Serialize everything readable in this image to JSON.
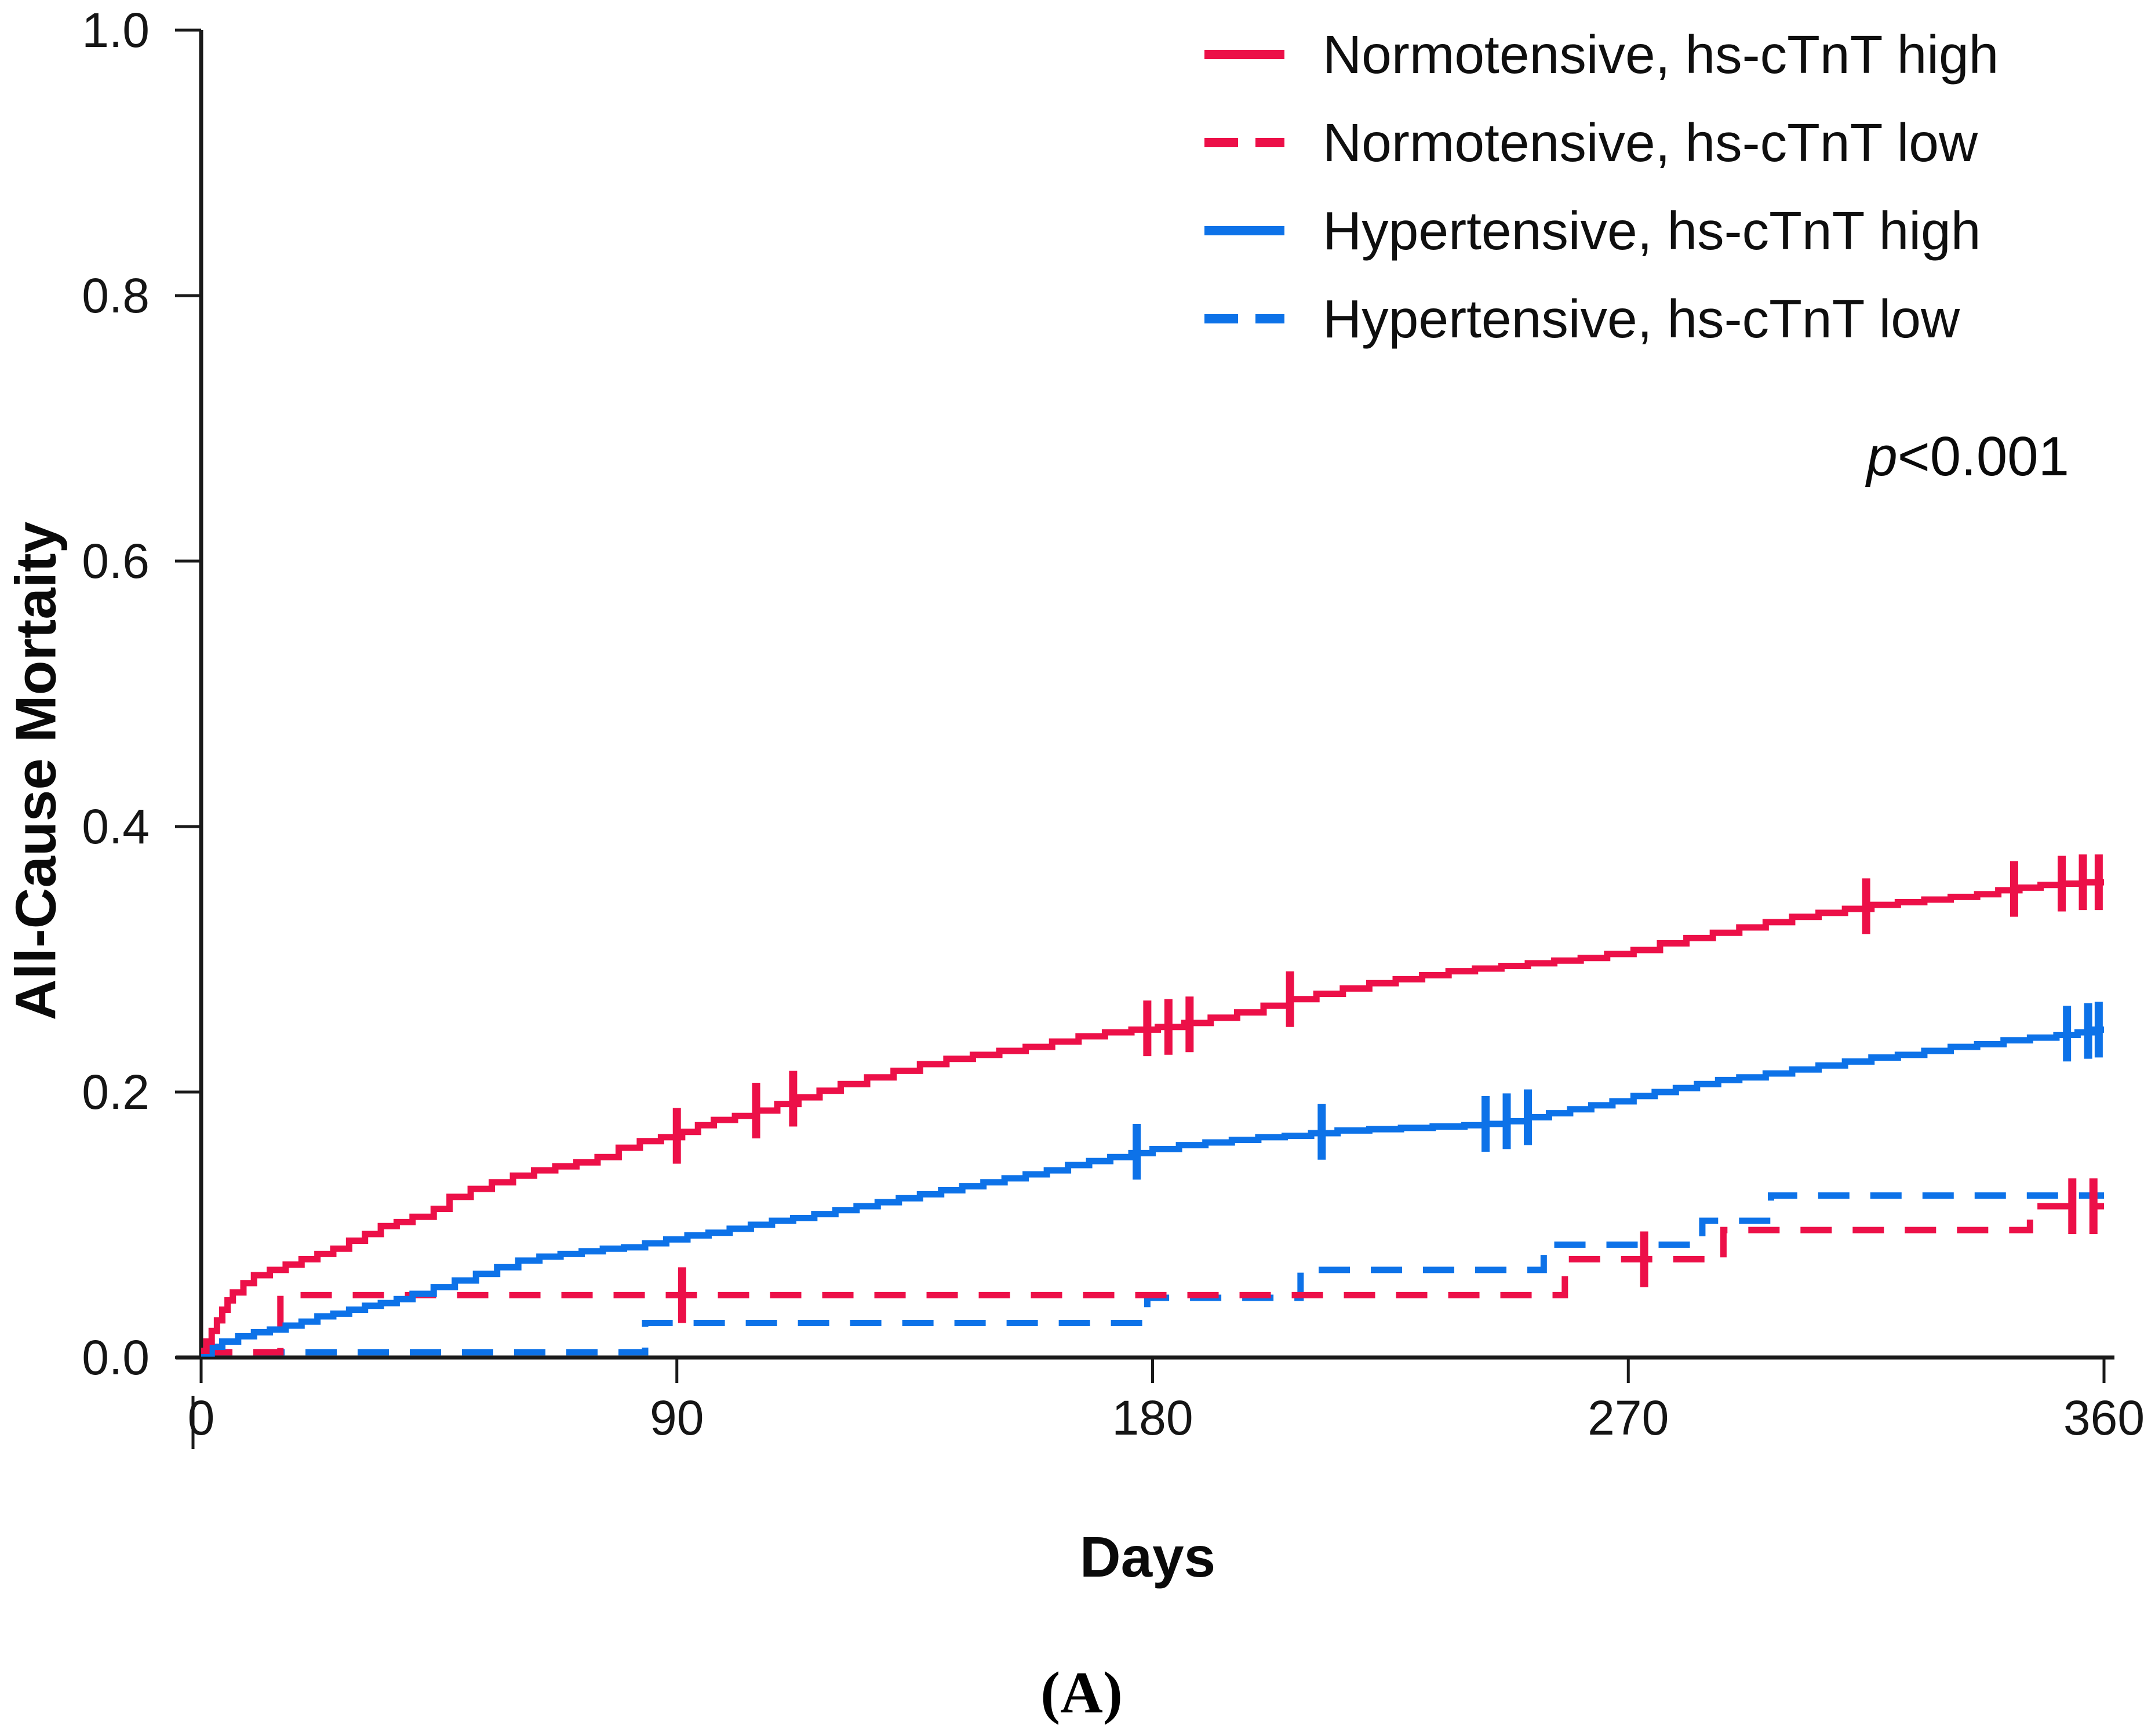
{
  "figure": {
    "panel_label": "(A)"
  },
  "annotations": {
    "p_italic": "p",
    "p_rest": "<0.001"
  },
  "chart_data": {
    "type": "line",
    "subtype": "kaplan-meier-cumulative-incidence-step",
    "title": "",
    "xlabel": "Days",
    "ylabel": "All-Cause Mortaity",
    "xlim": [
      0,
      360
    ],
    "ylim": [
      0.0,
      1.0
    ],
    "x_ticks": [
      0,
      90,
      180,
      270,
      360
    ],
    "x_tick_labels": [
      "0",
      "90",
      "180",
      "270",
      "360"
    ],
    "y_ticks": [
      0.0,
      0.2,
      0.4,
      0.6,
      0.8,
      1.0
    ],
    "y_tick_labels": [
      "0.0",
      "0.2",
      "0.4",
      "0.6",
      "0.8",
      "1.0"
    ],
    "grid": false,
    "legend_position": "top-right",
    "p_value_text": "p<0.001",
    "colors": {
      "red": "#EC1048",
      "blue": "#0D72E8",
      "axis": "#1a1a1a"
    },
    "series": [
      {
        "name": "Normotensive, hs-cTnT high",
        "color": "#EC1048",
        "dashed": false,
        "points": [
          [
            0,
            0.005
          ],
          [
            1,
            0.012
          ],
          [
            2,
            0.02
          ],
          [
            3,
            0.028
          ],
          [
            4,
            0.036
          ],
          [
            5,
            0.043
          ],
          [
            6,
            0.049
          ],
          [
            8,
            0.056
          ],
          [
            10,
            0.062
          ],
          [
            13,
            0.066
          ],
          [
            16,
            0.07
          ],
          [
            19,
            0.074
          ],
          [
            22,
            0.078
          ],
          [
            25,
            0.082
          ],
          [
            28,
            0.088
          ],
          [
            31,
            0.093
          ],
          [
            34,
            0.099
          ],
          [
            37,
            0.102
          ],
          [
            40,
            0.106
          ],
          [
            44,
            0.112
          ],
          [
            47,
            0.121
          ],
          [
            51,
            0.127
          ],
          [
            55,
            0.132
          ],
          [
            59,
            0.137
          ],
          [
            63,
            0.141
          ],
          [
            67,
            0.144
          ],
          [
            71,
            0.147
          ],
          [
            75,
            0.151
          ],
          [
            79,
            0.158
          ],
          [
            83,
            0.163
          ],
          [
            87,
            0.166
          ],
          [
            91,
            0.17
          ],
          [
            94,
            0.175
          ],
          [
            97,
            0.179
          ],
          [
            101,
            0.182
          ],
          [
            105,
            0.186
          ],
          [
            109,
            0.191
          ],
          [
            113,
            0.196
          ],
          [
            117,
            0.201
          ],
          [
            121,
            0.206
          ],
          [
            126,
            0.211
          ],
          [
            131,
            0.216
          ],
          [
            136,
            0.221
          ],
          [
            141,
            0.225
          ],
          [
            146,
            0.228
          ],
          [
            151,
            0.231
          ],
          [
            156,
            0.234
          ],
          [
            161,
            0.238
          ],
          [
            166,
            0.242
          ],
          [
            171,
            0.245
          ],
          [
            176,
            0.247
          ],
          [
            181,
            0.249
          ],
          [
            186,
            0.252
          ],
          [
            191,
            0.256
          ],
          [
            196,
            0.26
          ],
          [
            201,
            0.265
          ],
          [
            206,
            0.27
          ],
          [
            211,
            0.274
          ],
          [
            216,
            0.278
          ],
          [
            221,
            0.282
          ],
          [
            226,
            0.285
          ],
          [
            231,
            0.288
          ],
          [
            236,
            0.291
          ],
          [
            241,
            0.293
          ],
          [
            246,
            0.295
          ],
          [
            251,
            0.297
          ],
          [
            256,
            0.299
          ],
          [
            261,
            0.301
          ],
          [
            266,
            0.304
          ],
          [
            271,
            0.307
          ],
          [
            276,
            0.312
          ],
          [
            281,
            0.316
          ],
          [
            286,
            0.32
          ],
          [
            291,
            0.324
          ],
          [
            296,
            0.328
          ],
          [
            301,
            0.332
          ],
          [
            306,
            0.335
          ],
          [
            311,
            0.338
          ],
          [
            316,
            0.341
          ],
          [
            321,
            0.343
          ],
          [
            326,
            0.345
          ],
          [
            331,
            0.347
          ],
          [
            336,
            0.349
          ],
          [
            340,
            0.352
          ],
          [
            344,
            0.354
          ],
          [
            348,
            0.356
          ],
          [
            352,
            0.357
          ],
          [
            356,
            0.358
          ],
          [
            360,
            0.358
          ]
        ],
        "censor_marks": [
          [
            90,
            0.167
          ],
          [
            105,
            0.186
          ],
          [
            112,
            0.195
          ],
          [
            179,
            0.248
          ],
          [
            183,
            0.249
          ],
          [
            187,
            0.251
          ],
          [
            206,
            0.27
          ],
          [
            315,
            0.34
          ],
          [
            343,
            0.353
          ],
          [
            352,
            0.357
          ],
          [
            356,
            0.358
          ],
          [
            359,
            0.358
          ]
        ]
      },
      {
        "name": "Normotensive, hs-cTnT low",
        "color": "#EC1048",
        "dashed": true,
        "points": [
          [
            0,
            0.004
          ],
          [
            15,
            0.047
          ],
          [
            258,
            0.074
          ],
          [
            288,
            0.096
          ],
          [
            346,
            0.114
          ],
          [
            360,
            0.114
          ]
        ],
        "censor_marks": [
          [
            91,
            0.047
          ],
          [
            273,
            0.074
          ],
          [
            354,
            0.114
          ],
          [
            358,
            0.114
          ]
        ]
      },
      {
        "name": "Hypertensive, hs-cTnT high",
        "color": "#0D72E8",
        "dashed": false,
        "points": [
          [
            0,
            0.003
          ],
          [
            2,
            0.008
          ],
          [
            4,
            0.012
          ],
          [
            7,
            0.016
          ],
          [
            10,
            0.019
          ],
          [
            13,
            0.021
          ],
          [
            16,
            0.024
          ],
          [
            19,
            0.027
          ],
          [
            22,
            0.031
          ],
          [
            25,
            0.033
          ],
          [
            28,
            0.036
          ],
          [
            31,
            0.039
          ],
          [
            34,
            0.041
          ],
          [
            37,
            0.044
          ],
          [
            40,
            0.048
          ],
          [
            44,
            0.053
          ],
          [
            48,
            0.058
          ],
          [
            52,
            0.063
          ],
          [
            56,
            0.068
          ],
          [
            60,
            0.073
          ],
          [
            64,
            0.076
          ],
          [
            68,
            0.078
          ],
          [
            72,
            0.08
          ],
          [
            76,
            0.082
          ],
          [
            80,
            0.083
          ],
          [
            84,
            0.086
          ],
          [
            88,
            0.089
          ],
          [
            92,
            0.092
          ],
          [
            96,
            0.094
          ],
          [
            100,
            0.097
          ],
          [
            104,
            0.1
          ],
          [
            108,
            0.103
          ],
          [
            112,
            0.105
          ],
          [
            116,
            0.108
          ],
          [
            120,
            0.111
          ],
          [
            124,
            0.114
          ],
          [
            128,
            0.117
          ],
          [
            132,
            0.12
          ],
          [
            136,
            0.123
          ],
          [
            140,
            0.126
          ],
          [
            144,
            0.129
          ],
          [
            148,
            0.132
          ],
          [
            152,
            0.135
          ],
          [
            156,
            0.138
          ],
          [
            160,
            0.141
          ],
          [
            164,
            0.145
          ],
          [
            168,
            0.148
          ],
          [
            172,
            0.151
          ],
          [
            176,
            0.154
          ],
          [
            180,
            0.157
          ],
          [
            185,
            0.16
          ],
          [
            190,
            0.162
          ],
          [
            195,
            0.164
          ],
          [
            200,
            0.166
          ],
          [
            205,
            0.167
          ],
          [
            210,
            0.169
          ],
          [
            215,
            0.171
          ],
          [
            221,
            0.172
          ],
          [
            227,
            0.173
          ],
          [
            233,
            0.174
          ],
          [
            239,
            0.175
          ],
          [
            243,
            0.176
          ],
          [
            247,
            0.178
          ],
          [
            251,
            0.181
          ],
          [
            255,
            0.184
          ],
          [
            259,
            0.187
          ],
          [
            263,
            0.19
          ],
          [
            267,
            0.193
          ],
          [
            271,
            0.197
          ],
          [
            275,
            0.2
          ],
          [
            279,
            0.203
          ],
          [
            283,
            0.206
          ],
          [
            287,
            0.209
          ],
          [
            291,
            0.211
          ],
          [
            296,
            0.214
          ],
          [
            301,
            0.217
          ],
          [
            306,
            0.22
          ],
          [
            311,
            0.223
          ],
          [
            316,
            0.226
          ],
          [
            321,
            0.228
          ],
          [
            326,
            0.231
          ],
          [
            331,
            0.234
          ],
          [
            336,
            0.236
          ],
          [
            341,
            0.239
          ],
          [
            346,
            0.241
          ],
          [
            351,
            0.243
          ],
          [
            355,
            0.245
          ],
          [
            358,
            0.247
          ],
          [
            360,
            0.247
          ]
        ],
        "censor_marks": [
          [
            177,
            0.155
          ],
          [
            212,
            0.17
          ],
          [
            243,
            0.176
          ],
          [
            247,
            0.178
          ],
          [
            251,
            0.181
          ],
          [
            353,
            0.244
          ],
          [
            357,
            0.246
          ],
          [
            359,
            0.247
          ]
        ]
      },
      {
        "name": "Hypertensive, hs-cTnT low",
        "color": "#0D72E8",
        "dashed": true,
        "points": [
          [
            0,
            0.004
          ],
          [
            84,
            0.026
          ],
          [
            179,
            0.045
          ],
          [
            208,
            0.066
          ],
          [
            254,
            0.085
          ],
          [
            284,
            0.103
          ],
          [
            297,
            0.122
          ],
          [
            360,
            0.122
          ]
        ],
        "censor_marks": []
      }
    ]
  }
}
